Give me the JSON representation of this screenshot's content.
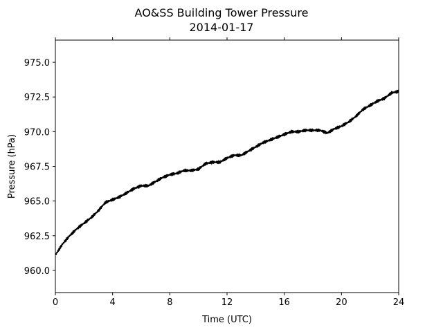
{
  "chart_data": {
    "type": "line",
    "title": "AO&SS Building Tower Pressure",
    "subtitle": "2014-01-17",
    "xlabel": "Time (UTC)",
    "ylabel": "Pressure (hPa)",
    "xlim": [
      0,
      24
    ],
    "ylim": [
      958.4,
      976.6
    ],
    "xticks": [
      0,
      4,
      8,
      12,
      16,
      20,
      24
    ],
    "xtick_labels": [
      "0",
      "4",
      "8",
      "12",
      "16",
      "20",
      "24"
    ],
    "yticks": [
      960.0,
      962.5,
      965.0,
      967.5,
      970.0,
      972.5,
      975.0
    ],
    "ytick_labels": [
      "960.0",
      "962.5",
      "965.0",
      "967.5",
      "970.0",
      "972.5",
      "975.0"
    ],
    "grid": false,
    "series": [
      {
        "color": "#000000",
        "x": [
          0,
          0.5,
          1,
          1.5,
          2,
          2.5,
          3,
          3.5,
          4,
          4.5,
          5,
          5.5,
          6,
          6.5,
          7,
          7.5,
          8,
          8.5,
          9,
          9.5,
          10,
          10.5,
          11,
          11.5,
          12,
          12.5,
          13,
          13.5,
          14,
          14.5,
          15,
          15.5,
          16,
          16.5,
          17,
          17.5,
          18,
          18.5,
          19,
          19.5,
          20,
          20.5,
          21,
          21.5,
          22,
          22.5,
          23,
          23.5,
          24
        ],
        "y": [
          961.1,
          961.9,
          962.5,
          963.0,
          963.4,
          963.8,
          964.3,
          964.9,
          965.1,
          965.3,
          965.6,
          965.9,
          966.1,
          966.1,
          966.4,
          966.7,
          966.9,
          967.0,
          967.2,
          967.2,
          967.3,
          967.7,
          967.8,
          967.8,
          968.1,
          968.3,
          968.3,
          968.6,
          968.9,
          969.2,
          969.4,
          969.6,
          969.8,
          970.0,
          970.0,
          970.1,
          970.1,
          970.1,
          969.9,
          970.2,
          970.4,
          970.7,
          971.1,
          971.6,
          971.9,
          972.2,
          972.4,
          972.8,
          972.9
        ]
      }
    ]
  }
}
